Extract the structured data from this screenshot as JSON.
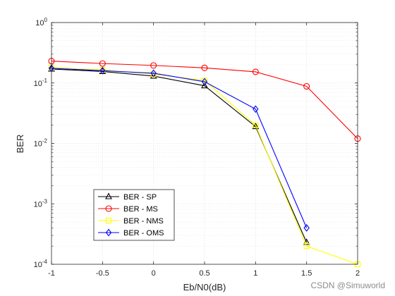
{
  "chart_data": {
    "type": "line",
    "xlabel": "Eb/N0(dB)",
    "ylabel": "BER",
    "xlim": [
      -1,
      2
    ],
    "ylim": [
      0.0001,
      1
    ],
    "yscale": "log",
    "grid": true,
    "legend_position": "bottom-left",
    "x_ticks": [
      "-1",
      "-0.5",
      "0",
      "0.5",
      "1",
      "1.5",
      "2"
    ],
    "y_ticks": [
      {
        "base": "10",
        "exp": "0"
      },
      {
        "base": "10",
        "exp": "-1"
      },
      {
        "base": "10",
        "exp": "-2"
      },
      {
        "base": "10",
        "exp": "-3"
      },
      {
        "base": "10",
        "exp": "-4"
      }
    ],
    "series": [
      {
        "name": "BER - SP",
        "color": "#000000",
        "marker": "triangle",
        "x": [
          -1,
          -0.5,
          0,
          0.5,
          1,
          1.5
        ],
        "y": [
          0.17,
          0.155,
          0.13,
          0.09,
          0.019,
          0.00023
        ]
      },
      {
        "name": "BER - MS",
        "color": "#ff0000",
        "marker": "circle",
        "x": [
          -1,
          -0.5,
          0,
          0.5,
          1,
          1.5,
          2
        ],
        "y": [
          0.23,
          0.21,
          0.195,
          0.178,
          0.153,
          0.088,
          0.012
        ]
      },
      {
        "name": "BER - NMS",
        "color": "#ffff00",
        "marker": "square",
        "x": [
          -1,
          -0.5,
          0,
          0.5,
          1,
          1.5,
          2
        ],
        "y": [
          0.18,
          0.165,
          0.14,
          0.11,
          0.02,
          0.0002,
          0.0001
        ]
      },
      {
        "name": "BER - OMS",
        "color": "#0000ff",
        "marker": "diamond",
        "x": [
          -1,
          -0.5,
          0,
          0.5,
          1,
          1.5
        ],
        "y": [
          0.175,
          0.16,
          0.145,
          0.105,
          0.037,
          0.0004
        ]
      }
    ]
  },
  "watermark": "CSDN @Simuworld"
}
